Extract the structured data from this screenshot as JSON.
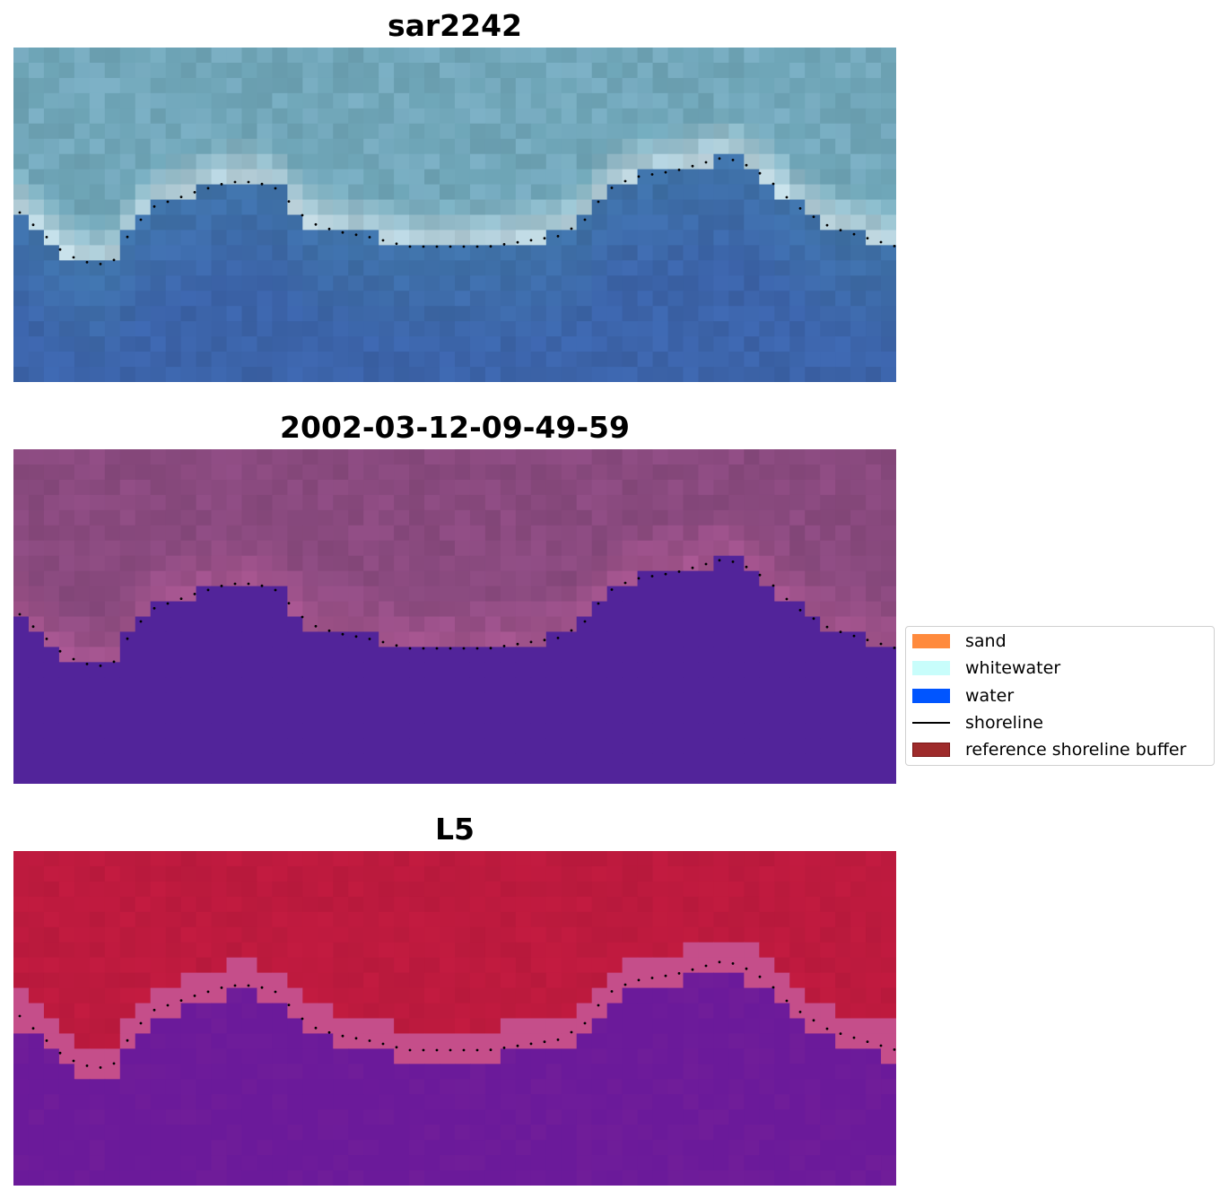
{
  "panels": [
    {
      "title": "sar2242",
      "style": "rgb"
    },
    {
      "title": "2002-03-12-09-49-59",
      "style": "classified"
    },
    {
      "title": "L5",
      "style": "index"
    }
  ],
  "legend": {
    "items": [
      {
        "label": "sand",
        "kind": "patch",
        "color": "#ff8a3d",
        "edge": "#ff8a3d"
      },
      {
        "label": "whitewater",
        "kind": "patch",
        "color": "#c8fdfb",
        "edge": "#c8fdfb"
      },
      {
        "label": "water",
        "kind": "patch",
        "color": "#0055ff",
        "edge": "#0055ff"
      },
      {
        "label": "shoreline",
        "kind": "line",
        "color": "#000000"
      },
      {
        "label": "reference shoreline buffer",
        "kind": "patch",
        "color": "#9e2b2b",
        "edge": "#7a1515"
      }
    ]
  },
  "colors": {
    "rgb_land": "#6fa6b8",
    "rgb_water": "#3f72a8",
    "rgb_whitewater": "#e6eef3",
    "class_land": "#8a4a7f",
    "class_water": "#52249a",
    "index_land": "#bd1a3e",
    "index_water": "#6b1a9a",
    "shoreline": "#000000"
  }
}
